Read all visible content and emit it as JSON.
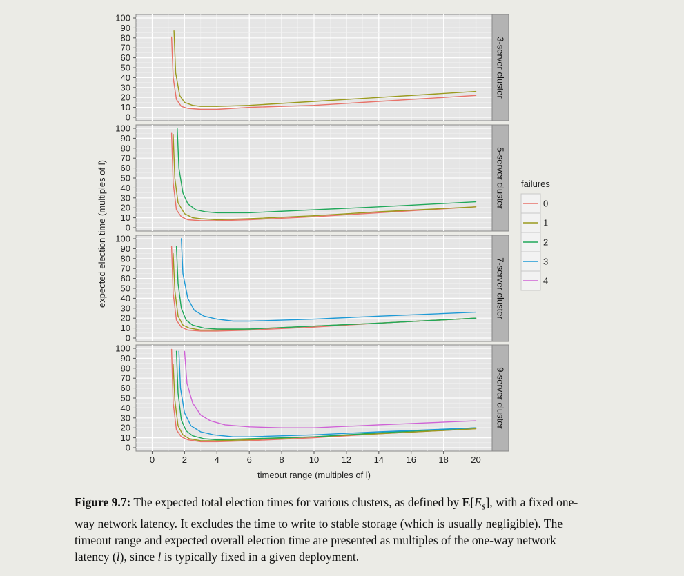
{
  "chart_data": {
    "type": "line",
    "xlabel": "timeout range (multiples of l)",
    "ylabel": "expected election time (multiples of l)",
    "xlim": [
      -1,
      21
    ],
    "ylim": [
      0,
      100
    ],
    "x_ticks": [
      0,
      2,
      4,
      6,
      8,
      10,
      12,
      14,
      16,
      18,
      20
    ],
    "y_ticks": [
      0,
      10,
      20,
      30,
      40,
      50,
      60,
      70,
      80,
      90,
      100
    ],
    "grid": true,
    "legend": {
      "title": "failures",
      "position": "right",
      "entries": [
        {
          "label": "0",
          "color": "#e8736a"
        },
        {
          "label": "1",
          "color": "#9a9a1e"
        },
        {
          "label": "2",
          "color": "#20a85a"
        },
        {
          "label": "3",
          "color": "#1e9ad6"
        },
        {
          "label": "4",
          "color": "#cf62d6"
        }
      ]
    },
    "panels": [
      {
        "title": "3-server cluster",
        "series": [
          {
            "name": "0",
            "x": [
              1.2,
              1.3,
              1.5,
              1.8,
              2.2,
              3,
              4,
              6,
              10,
              14,
              20
            ],
            "y": [
              81,
              40,
              18,
              11,
              9,
              8,
              8,
              10,
              12,
              16,
              22
            ]
          },
          {
            "name": "1",
            "x": [
              1.35,
              1.45,
              1.7,
              2.0,
              2.5,
              3,
              4,
              6,
              10,
              14,
              20
            ],
            "y": [
              87,
              45,
              22,
              15,
              12,
              11,
              11,
              12,
              16,
              20,
              26
            ]
          }
        ]
      },
      {
        "title": "5-server cluster",
        "series": [
          {
            "name": "0",
            "x": [
              1.2,
              1.3,
              1.5,
              1.8,
              2.2,
              3,
              4,
              6,
              10,
              14,
              20
            ],
            "y": [
              95,
              45,
              18,
              11,
              8,
              7,
              7,
              8,
              11,
              15,
              21
            ]
          },
          {
            "name": "1",
            "x": [
              1.3,
              1.4,
              1.6,
              2.0,
              2.5,
              3,
              4,
              6,
              10,
              14,
              20
            ],
            "y": [
              94,
              50,
              25,
              14,
              10,
              9,
              8,
              9,
              12,
              16,
              21
            ]
          },
          {
            "name": "2",
            "x": [
              1.55,
              1.65,
              1.9,
              2.2,
              2.7,
              3.3,
              4,
              6,
              10,
              14,
              20
            ],
            "y": [
              100,
              60,
              35,
              24,
              18,
              16,
              15,
              15,
              18,
              21,
              26
            ]
          }
        ]
      },
      {
        "title": "7-server cluster",
        "series": [
          {
            "name": "0",
            "x": [
              1.2,
              1.3,
              1.5,
              1.8,
              2.2,
              3,
              4,
              6,
              10,
              14,
              20
            ],
            "y": [
              92,
              45,
              18,
              11,
              8,
              7,
              7,
              8,
              11,
              15,
              20
            ]
          },
          {
            "name": "1",
            "x": [
              1.3,
              1.4,
              1.6,
              1.9,
              2.3,
              3,
              4,
              6,
              10,
              14,
              20
            ],
            "y": [
              85,
              48,
              22,
              13,
              10,
              8,
              8,
              9,
              12,
              15,
              20
            ]
          },
          {
            "name": "2",
            "x": [
              1.5,
              1.6,
              1.8,
              2.1,
              2.5,
              3.2,
              4,
              6,
              10,
              14,
              20
            ],
            "y": [
              92,
              55,
              30,
              18,
              13,
              10,
              9,
              9,
              12,
              15,
              20
            ]
          },
          {
            "name": "3",
            "x": [
              1.8,
              1.9,
              2.2,
              2.6,
              3.2,
              4,
              5,
              6,
              10,
              14,
              20
            ],
            "y": [
              100,
              65,
              40,
              28,
              22,
              19,
              17,
              17,
              19,
              22,
              26
            ]
          }
        ]
      },
      {
        "title": "9-server cluster",
        "series": [
          {
            "name": "0",
            "x": [
              1.2,
              1.3,
              1.5,
              1.8,
              2.2,
              3,
              4,
              6,
              10,
              14,
              20
            ],
            "y": [
              99,
              45,
              18,
              11,
              8,
              6,
              6,
              7,
              10,
              14,
              19
            ]
          },
          {
            "name": "1",
            "x": [
              1.3,
              1.4,
              1.6,
              1.9,
              2.3,
              3,
              4,
              6,
              10,
              14,
              20
            ],
            "y": [
              84,
              48,
              22,
              13,
              9,
              7,
              7,
              8,
              11,
              14,
              19
            ]
          },
          {
            "name": "2",
            "x": [
              1.5,
              1.6,
              1.8,
              2.1,
              2.5,
              3.2,
              4,
              6,
              10,
              14,
              20
            ],
            "y": [
              97,
              55,
              28,
              17,
              12,
              9,
              8,
              9,
              11,
              15,
              20
            ]
          },
          {
            "name": "3",
            "x": [
              1.65,
              1.75,
              2.0,
              2.4,
              3.0,
              3.8,
              5,
              6,
              10,
              14,
              20
            ],
            "y": [
              97,
              60,
              35,
              22,
              16,
              13,
              11,
              11,
              13,
              16,
              20
            ]
          },
          {
            "name": "4",
            "x": [
              2.0,
              2.15,
              2.5,
              3.0,
              3.6,
              4.5,
              6,
              8,
              10,
              14,
              20
            ],
            "y": [
              97,
              65,
              45,
              33,
              27,
              23,
              21,
              20,
              20,
              23,
              27
            ]
          }
        ]
      }
    ]
  },
  "caption": {
    "label": "Figure 9.7:",
    "text_1": " The expected total election times for various clusters, as defined by ",
    "math_e": "E",
    "math_open": "[",
    "math_es_base": "E",
    "math_es_sub": "s",
    "math_close": "]",
    "text_2": ", with a fixed one-way network latency. It excludes the time to write to stable storage (which is usually negligible). The timeout range and expected overall election time are presented as multiples of the one-way network latency (",
    "math_l1": "l",
    "text_3": "), since ",
    "math_l2": "l",
    "text_4": " is typically fixed in a given deployment."
  }
}
